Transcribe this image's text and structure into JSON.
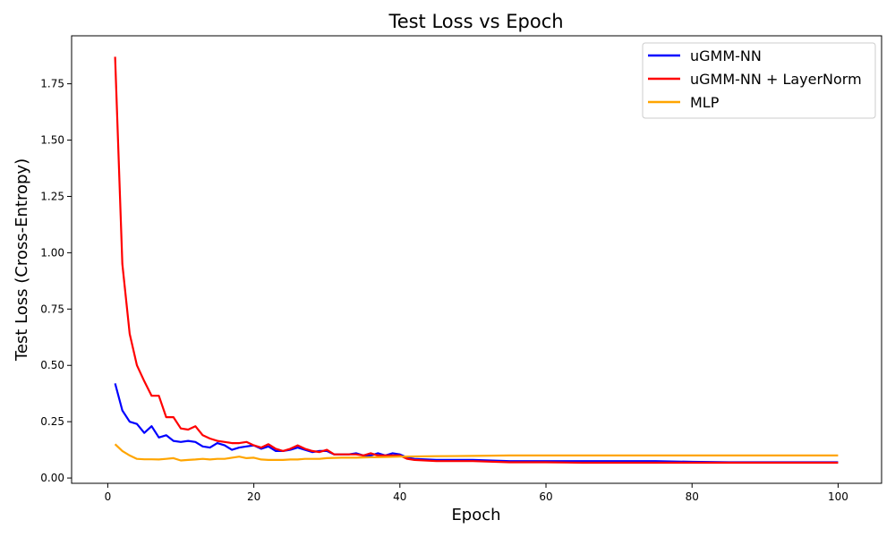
{
  "chart_data": {
    "type": "line",
    "title": "Test Loss vs Epoch",
    "xlabel": "Epoch",
    "ylabel": "Test Loss (Cross-Entropy)",
    "xlim": [
      -4.95,
      105.95
    ],
    "ylim": [
      -0.0235,
      1.963
    ],
    "xticks": [
      0,
      20,
      40,
      60,
      80,
      100
    ],
    "yticks": [
      0.0,
      0.25,
      0.5,
      0.75,
      1.0,
      1.25,
      1.5,
      1.75
    ],
    "grid": false,
    "legend_position": "top-right",
    "series": [
      {
        "name": "uGMM-NN",
        "color": "#0000ff",
        "points": [
          [
            1,
            0.42
          ],
          [
            2,
            0.3
          ],
          [
            3,
            0.25
          ],
          [
            4,
            0.24
          ],
          [
            5,
            0.2
          ],
          [
            6,
            0.23
          ],
          [
            7,
            0.18
          ],
          [
            8,
            0.19
          ],
          [
            9,
            0.165
          ],
          [
            10,
            0.16
          ],
          [
            11,
            0.165
          ],
          [
            12,
            0.16
          ],
          [
            13,
            0.14
          ],
          [
            14,
            0.135
          ],
          [
            15,
            0.155
          ],
          [
            16,
            0.145
          ],
          [
            17,
            0.125
          ],
          [
            18,
            0.135
          ],
          [
            19,
            0.14
          ],
          [
            20,
            0.145
          ],
          [
            21,
            0.13
          ],
          [
            22,
            0.14
          ],
          [
            23,
            0.12
          ],
          [
            24,
            0.12
          ],
          [
            25,
            0.125
          ],
          [
            26,
            0.135
          ],
          [
            27,
            0.125
          ],
          [
            28,
            0.115
          ],
          [
            29,
            0.12
          ],
          [
            30,
            0.12
          ],
          [
            31,
            0.105
          ],
          [
            32,
            0.105
          ],
          [
            33,
            0.105
          ],
          [
            34,
            0.11
          ],
          [
            35,
            0.1
          ],
          [
            36,
            0.1
          ],
          [
            37,
            0.11
          ],
          [
            38,
            0.1
          ],
          [
            39,
            0.11
          ],
          [
            40,
            0.105
          ],
          [
            41,
            0.09
          ],
          [
            42,
            0.085
          ],
          [
            45,
            0.08
          ],
          [
            50,
            0.08
          ],
          [
            55,
            0.075
          ],
          [
            60,
            0.075
          ],
          [
            65,
            0.075
          ],
          [
            70,
            0.075
          ],
          [
            75,
            0.075
          ],
          [
            80,
            0.072
          ],
          [
            85,
            0.07
          ],
          [
            90,
            0.07
          ],
          [
            95,
            0.07
          ],
          [
            100,
            0.07
          ]
        ]
      },
      {
        "name": "uGMM-NN + LayerNorm",
        "color": "#ff0000",
        "points": [
          [
            1,
            1.87
          ],
          [
            2,
            0.95
          ],
          [
            3,
            0.64
          ],
          [
            4,
            0.5
          ],
          [
            5,
            0.43
          ],
          [
            6,
            0.365
          ],
          [
            7,
            0.365
          ],
          [
            8,
            0.27
          ],
          [
            9,
            0.27
          ],
          [
            10,
            0.22
          ],
          [
            11,
            0.215
          ],
          [
            12,
            0.23
          ],
          [
            13,
            0.19
          ],
          [
            14,
            0.175
          ],
          [
            15,
            0.165
          ],
          [
            16,
            0.16
          ],
          [
            17,
            0.155
          ],
          [
            18,
            0.155
          ],
          [
            19,
            0.16
          ],
          [
            20,
            0.145
          ],
          [
            21,
            0.135
          ],
          [
            22,
            0.15
          ],
          [
            23,
            0.13
          ],
          [
            24,
            0.12
          ],
          [
            25,
            0.13
          ],
          [
            26,
            0.145
          ],
          [
            27,
            0.13
          ],
          [
            28,
            0.12
          ],
          [
            29,
            0.115
          ],
          [
            30,
            0.125
          ],
          [
            31,
            0.105
          ],
          [
            32,
            0.105
          ],
          [
            33,
            0.105
          ],
          [
            34,
            0.105
          ],
          [
            35,
            0.1
          ],
          [
            36,
            0.11
          ],
          [
            37,
            0.1
          ],
          [
            38,
            0.1
          ],
          [
            39,
            0.1
          ],
          [
            40,
            0.1
          ],
          [
            41,
            0.085
          ],
          [
            42,
            0.08
          ],
          [
            45,
            0.075
          ],
          [
            50,
            0.075
          ],
          [
            55,
            0.07
          ],
          [
            60,
            0.07
          ],
          [
            65,
            0.068
          ],
          [
            70,
            0.068
          ],
          [
            75,
            0.068
          ],
          [
            80,
            0.068
          ],
          [
            85,
            0.068
          ],
          [
            90,
            0.068
          ],
          [
            95,
            0.068
          ],
          [
            100,
            0.068
          ]
        ]
      },
      {
        "name": "MLP",
        "color": "#ffa500",
        "points": [
          [
            1,
            0.15
          ],
          [
            2,
            0.12
          ],
          [
            3,
            0.1
          ],
          [
            4,
            0.085
          ],
          [
            5,
            0.083
          ],
          [
            6,
            0.083
          ],
          [
            7,
            0.082
          ],
          [
            8,
            0.085
          ],
          [
            9,
            0.088
          ],
          [
            10,
            0.078
          ],
          [
            11,
            0.08
          ],
          [
            12,
            0.082
          ],
          [
            13,
            0.085
          ],
          [
            14,
            0.082
          ],
          [
            15,
            0.085
          ],
          [
            16,
            0.085
          ],
          [
            17,
            0.09
          ],
          [
            18,
            0.095
          ],
          [
            19,
            0.088
          ],
          [
            20,
            0.09
          ],
          [
            21,
            0.082
          ],
          [
            22,
            0.08
          ],
          [
            23,
            0.08
          ],
          [
            24,
            0.08
          ],
          [
            25,
            0.082
          ],
          [
            26,
            0.082
          ],
          [
            27,
            0.085
          ],
          [
            28,
            0.085
          ],
          [
            29,
            0.085
          ],
          [
            30,
            0.088
          ],
          [
            32,
            0.09
          ],
          [
            34,
            0.09
          ],
          [
            36,
            0.092
          ],
          [
            38,
            0.093
          ],
          [
            40,
            0.095
          ],
          [
            45,
            0.097
          ],
          [
            50,
            0.098
          ],
          [
            55,
            0.1
          ],
          [
            60,
            0.1
          ],
          [
            65,
            0.1
          ],
          [
            70,
            0.1
          ],
          [
            75,
            0.1
          ],
          [
            80,
            0.1
          ],
          [
            85,
            0.1
          ],
          [
            90,
            0.1
          ],
          [
            95,
            0.1
          ],
          [
            100,
            0.1
          ]
        ]
      }
    ]
  }
}
